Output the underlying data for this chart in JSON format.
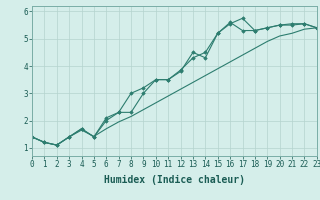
{
  "title": "",
  "xlabel": "Humidex (Indice chaleur)",
  "x_values": [
    0,
    1,
    2,
    3,
    4,
    5,
    6,
    7,
    8,
    9,
    10,
    11,
    12,
    13,
    14,
    15,
    16,
    17,
    18,
    19,
    20,
    21,
    22,
    23
  ],
  "line1_y": [
    1.4,
    1.2,
    1.1,
    1.4,
    1.7,
    1.4,
    2.0,
    2.3,
    2.3,
    3.0,
    3.5,
    3.5,
    3.8,
    4.5,
    4.3,
    5.2,
    5.55,
    5.75,
    5.3,
    5.4,
    5.5,
    5.5,
    5.55,
    5.4
  ],
  "line2_y": [
    1.4,
    1.2,
    1.1,
    1.4,
    1.7,
    1.4,
    2.1,
    2.3,
    3.0,
    3.2,
    3.5,
    3.5,
    3.85,
    4.3,
    4.5,
    5.2,
    5.6,
    5.3,
    5.3,
    5.4,
    5.5,
    5.55,
    5.55,
    5.4
  ],
  "line3_y": [
    1.4,
    1.2,
    1.1,
    1.4,
    1.65,
    1.42,
    1.7,
    1.95,
    2.15,
    2.4,
    2.65,
    2.9,
    3.15,
    3.4,
    3.65,
    3.9,
    4.15,
    4.4,
    4.65,
    4.9,
    5.1,
    5.2,
    5.35,
    5.4
  ],
  "xlim": [
    0,
    23
  ],
  "ylim": [
    0.7,
    6.2
  ],
  "yticks": [
    1,
    2,
    3,
    4,
    5,
    6
  ],
  "xticks": [
    0,
    1,
    2,
    3,
    4,
    5,
    6,
    7,
    8,
    9,
    10,
    11,
    12,
    13,
    14,
    15,
    16,
    17,
    18,
    19,
    20,
    21,
    22,
    23
  ],
  "line_color": "#2d7d6f",
  "bg_color": "#d5eeea",
  "grid_color": "#b5d4ce",
  "marker": "D",
  "marker_size": 1.8,
  "line_width": 0.8,
  "xlabel_fontsize": 7,
  "tick_fontsize": 5.5
}
